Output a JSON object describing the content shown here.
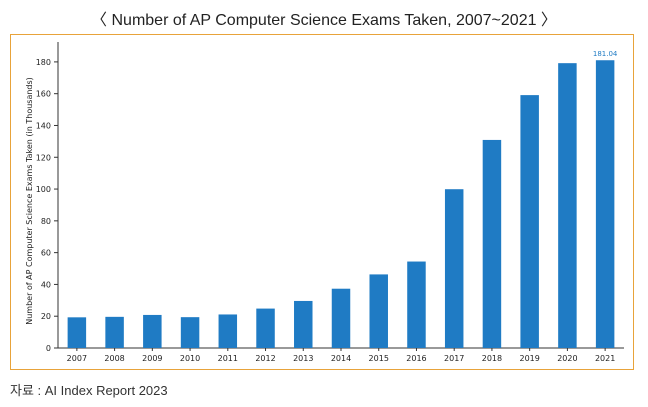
{
  "page": {
    "title": "〈 Number of AP Computer Science Exams Taken, 2007~2021 〉",
    "source": "자료 : AI Index Report 2023"
  },
  "colors": {
    "bar": "#1f7bc4",
    "frame": "#e8a33a",
    "label_accent": "#1f7bc4"
  },
  "chart_data": {
    "type": "bar",
    "title": "Number of AP Computer Science Exams Taken, 2007~2021",
    "categories": [
      "2007",
      "2008",
      "2009",
      "2010",
      "2011",
      "2012",
      "2013",
      "2014",
      "2015",
      "2016",
      "2017",
      "2018",
      "2019",
      "2020",
      "2021"
    ],
    "values": [
      19.3,
      19.6,
      20.8,
      19.4,
      21.1,
      24.8,
      29.6,
      37.3,
      46.3,
      54.4,
      99.9,
      130.9,
      159.1,
      179.2,
      181.04
    ],
    "data_labels": [
      null,
      null,
      null,
      null,
      null,
      null,
      null,
      null,
      null,
      null,
      null,
      null,
      null,
      null,
      "181.04"
    ],
    "ylabel": "Number of AP Computer Science Exams Taken (in Thousands)",
    "xlabel": "",
    "ylim": [
      0,
      190
    ],
    "yticks": [
      0,
      20,
      40,
      60,
      80,
      100,
      120,
      140,
      160,
      180
    ],
    "grid": false,
    "legend": "none"
  }
}
